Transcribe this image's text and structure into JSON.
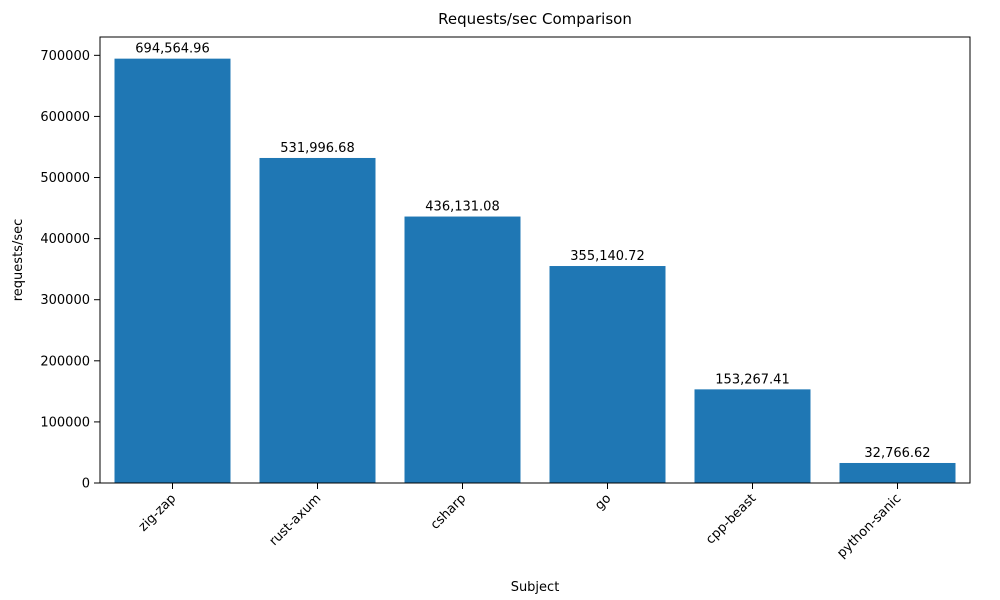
{
  "chart_data": {
    "type": "bar",
    "title": "Requests/sec Comparison",
    "xlabel": "Subject",
    "ylabel": "requests/sec",
    "categories": [
      "zig-zap",
      "rust-axum",
      "csharp",
      "go",
      "cpp-beast",
      "python-sanic"
    ],
    "values": [
      694564.96,
      531996.68,
      436131.08,
      355140.72,
      153267.41,
      32766.62
    ],
    "value_labels": [
      "694,564.96",
      "531,996.68",
      "436,131.08",
      "355,140.72",
      "153,267.41",
      "32,766.62"
    ],
    "yticks": [
      0,
      100000,
      200000,
      300000,
      400000,
      500000,
      600000,
      700000
    ],
    "ytick_labels": [
      "0",
      "100000",
      "200000",
      "300000",
      "400000",
      "500000",
      "600000",
      "700000"
    ],
    "ylim": [
      0,
      730000
    ],
    "legend": null,
    "grid": false,
    "bar_color": "#1f77b4",
    "text_color": "#000000",
    "background": "#ffffff"
  }
}
